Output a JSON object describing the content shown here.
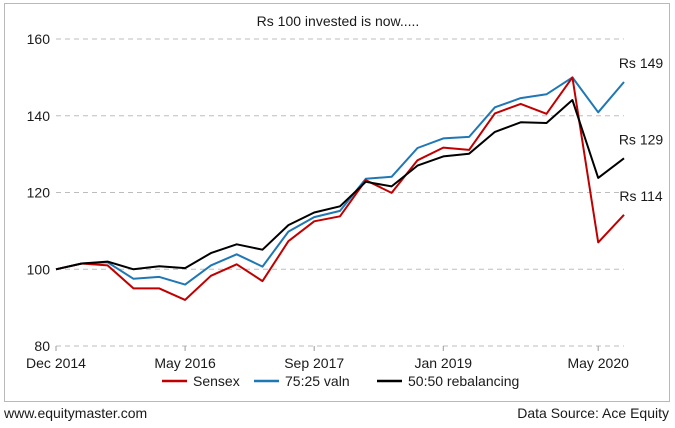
{
  "footer": {
    "website": "www.equitymaster.com",
    "source": "Data Source: Ace Equity"
  },
  "chart_data": {
    "type": "line",
    "title": "Rs 100 invested is now.....",
    "xlabel": "",
    "ylabel": "",
    "ylim": [
      80,
      160
    ],
    "yticks": [
      80,
      100,
      120,
      140,
      160
    ],
    "x_tick_labels": [
      "Dec 2014",
      "May 2016",
      "Sep 2017",
      "Jan 2019",
      "May 2020"
    ],
    "x_tick_index": [
      0,
      5,
      10,
      15,
      21
    ],
    "grid": "horizontal dashed",
    "legend_position": "bottom",
    "series": [
      {
        "name": "Sensex",
        "color": "#c00000",
        "values": [
          100,
          101.5,
          101,
          95,
          95,
          92,
          98.3,
          101.3,
          96.9,
          107.3,
          112.5,
          113.8,
          123.2,
          119.9,
          128.4,
          131.7,
          131.1,
          140.6,
          143.1,
          140.5,
          150,
          107,
          114.2
        ],
        "end_label": "Rs 114"
      },
      {
        "name": "75:25 valn",
        "color": "#1f77b4",
        "values": [
          100,
          101.5,
          101.8,
          97.5,
          98,
          96,
          101,
          103.9,
          100.7,
          109.8,
          113.6,
          115.2,
          123.6,
          124.1,
          131.6,
          134.1,
          134.5,
          142.2,
          144.6,
          145.6,
          150,
          140.9,
          148.8
        ],
        "end_label": "Rs 149"
      },
      {
        "name": "50:50 rebalancing",
        "color": "#000000",
        "values": [
          100,
          101.5,
          102,
          100,
          100.8,
          100.3,
          104.2,
          106.5,
          105.1,
          111.5,
          114.8,
          116.4,
          122.8,
          121.6,
          127,
          129.4,
          130.1,
          135.8,
          138.3,
          138.1,
          144.1,
          123.8,
          128.9
        ],
        "end_label": "Rs 129"
      }
    ]
  }
}
